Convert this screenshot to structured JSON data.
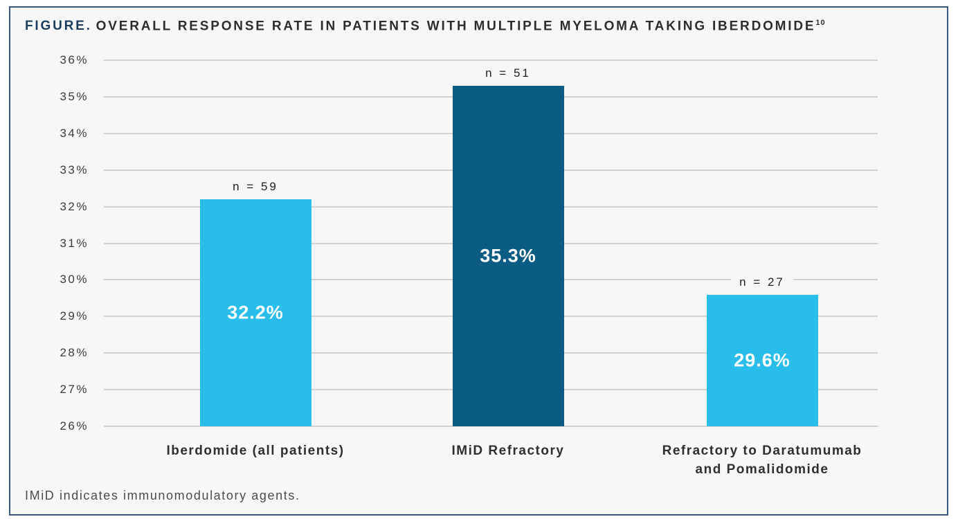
{
  "figure": {
    "label": "FIGURE.",
    "title": "OVERALL RESPONSE RATE IN PATIENTS WITH MULTIPLE MYELOMA TAKING IBERDOMIDE",
    "reference_superscript": "10",
    "footnote": "IMiD indicates immunomodulatory agents."
  },
  "colors": {
    "bar_light_blue": "#29BDE9",
    "bar_dark_blue": "#0B5C83",
    "value_label_text": "#FFFFFF",
    "border": "#355984",
    "background": "#F7F7F7",
    "gridline": "#D2D2D2",
    "figure_label_navy": "#1D3C5C"
  },
  "chart_data": {
    "type": "bar",
    "title": "FIGURE. OVERALL RESPONSE RATE IN PATIENTS WITH MULTIPLE MYELOMA TAKING IBERDOMIDE",
    "categories": [
      "Iberdomide (all patients)",
      "IMiD Refractory",
      "Refractory to Daratumumab\nand Pomalidomide"
    ],
    "values": [
      32.2,
      35.3,
      29.6
    ],
    "value_labels": [
      "32.2%",
      "35.3%",
      "29.6%"
    ],
    "n_labels": [
      "n = 59",
      "n = 51",
      "n = 27"
    ],
    "bar_colors": [
      "#29BDE9",
      "#0B5C83",
      "#29BDE9"
    ],
    "xlabel": "",
    "ylabel": "",
    "ylim": [
      26,
      36
    ],
    "ytick_values": [
      26,
      27,
      28,
      29,
      30,
      31,
      32,
      33,
      34,
      35,
      36
    ],
    "ytick_labels": [
      "26%",
      "27%",
      "28%",
      "29%",
      "30%",
      "31%",
      "32%",
      "33%",
      "34%",
      "35%",
      "36%"
    ],
    "grid": true,
    "legend": false
  }
}
